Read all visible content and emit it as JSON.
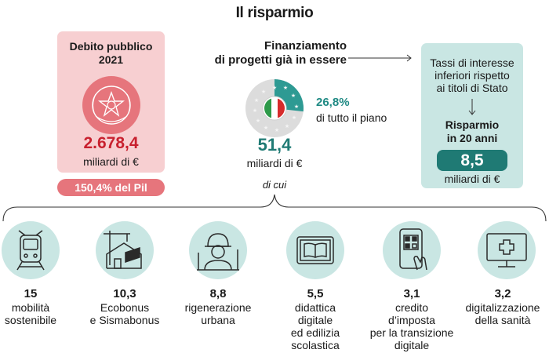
{
  "title": "Il risparmio",
  "debt": {
    "title_line1": "Debito pubblico",
    "title_line2": "2021",
    "value": "2.678,4",
    "unit": "miliardi di €",
    "pil": "150,4% del Pil"
  },
  "financing": {
    "title_line1": "Finanziamento",
    "title_line2": "di progetti già in essere",
    "percent": "26,8%",
    "percent_label": "di tutto il piano",
    "share_value": 26.8,
    "value": "51,4",
    "unit": "miliardi di €",
    "of_which": "di cui"
  },
  "savings": {
    "line1": "Tassi di interesse",
    "line2": "inferiori rispetto",
    "line3": "ai titoli di Stato",
    "title_line1": "Risparmio",
    "title_line2": "in 20 anni",
    "value": "8,5",
    "unit": "miliardi di €"
  },
  "categories": [
    {
      "value": "15",
      "lines": [
        "mobilità",
        "sostenibile"
      ],
      "icon": "train-icon"
    },
    {
      "value": "10,3",
      "lines": [
        "Ecobonus",
        "e Sismabonus"
      ],
      "icon": "house-crane-icon"
    },
    {
      "value": "8,8",
      "lines": [
        "rigenerazione",
        "urbana"
      ],
      "icon": "worker-icon"
    },
    {
      "value": "5,5",
      "lines": [
        "didattica",
        "digitale",
        "ed edilizia",
        "scolastica"
      ],
      "icon": "tablet-book-icon"
    },
    {
      "value": "3,1",
      "lines": [
        "credito",
        "d’imposta",
        "per la transizione",
        "digitale"
      ],
      "icon": "phone-qr-icon"
    },
    {
      "value": "3,2",
      "lines": [
        "digitalizzazione",
        "della sanità"
      ],
      "icon": "monitor-cross-icon"
    }
  ],
  "colors": {
    "pink": "#f7cfd1",
    "red": "#c8202e",
    "teal": "#1f7a74",
    "light_teal": "#c9e6e3"
  }
}
